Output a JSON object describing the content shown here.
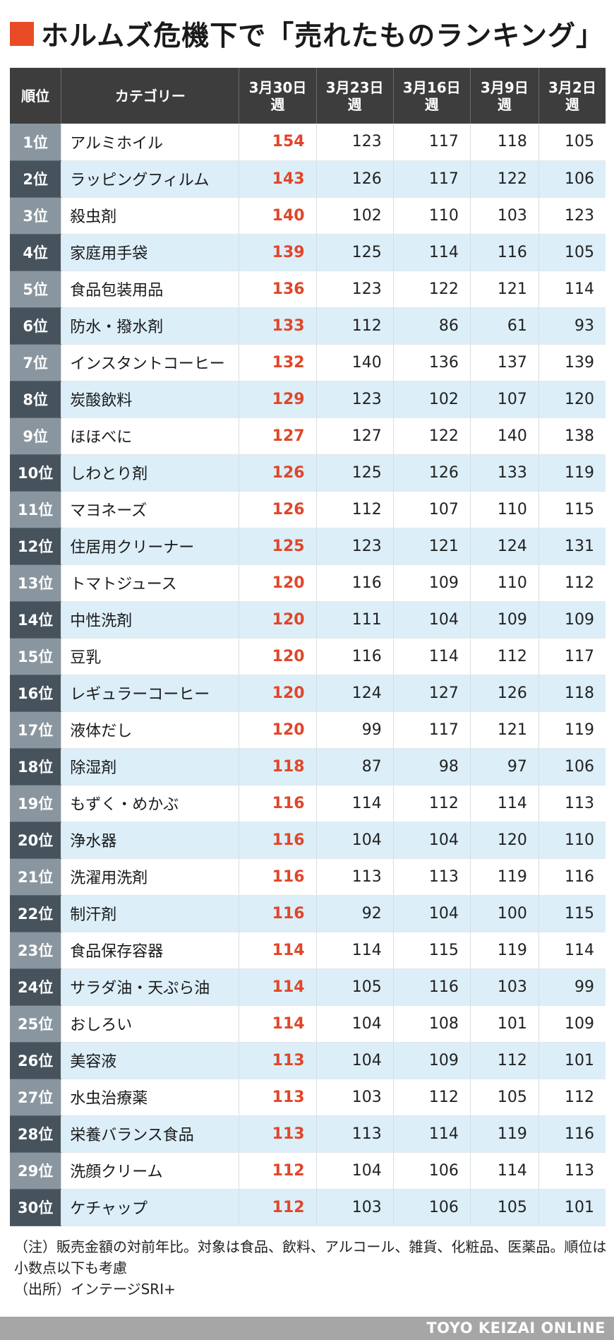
{
  "title": "ホルムズ危機下で「売れたものランキング」",
  "colors": {
    "accent": "#ea4b27",
    "highlight": "#e0462a",
    "header_bg": "#3d3d3d",
    "row_alt": "#dceef8"
  },
  "chart_data": {
    "type": "table",
    "title": "ホルムズ危機下で「売れたものランキング」",
    "columns": [
      "順位",
      "カテゴリー",
      "3月30日週",
      "3月23日週",
      "3月16日週",
      "3月9日週",
      "3月2日週"
    ],
    "rows": [
      {
        "rank": "1位",
        "category": "アルミホイル",
        "values": [
          154,
          123,
          117,
          118,
          105
        ]
      },
      {
        "rank": "2位",
        "category": "ラッピングフィルム",
        "values": [
          143,
          126,
          117,
          122,
          106
        ]
      },
      {
        "rank": "3位",
        "category": "殺虫剤",
        "values": [
          140,
          102,
          110,
          103,
          123
        ]
      },
      {
        "rank": "4位",
        "category": "家庭用手袋",
        "values": [
          139,
          125,
          114,
          116,
          105
        ]
      },
      {
        "rank": "5位",
        "category": "食品包装用品",
        "values": [
          136,
          123,
          122,
          121,
          114
        ]
      },
      {
        "rank": "6位",
        "category": "防水・撥水剤",
        "values": [
          133,
          112,
          86,
          61,
          93
        ]
      },
      {
        "rank": "7位",
        "category": "インスタントコーヒー",
        "values": [
          132,
          140,
          136,
          137,
          139
        ]
      },
      {
        "rank": "8位",
        "category": "炭酸飲料",
        "values": [
          129,
          123,
          102,
          107,
          120
        ]
      },
      {
        "rank": "9位",
        "category": "ほほべに",
        "values": [
          127,
          127,
          122,
          140,
          138
        ]
      },
      {
        "rank": "10位",
        "category": "しわとり剤",
        "values": [
          126,
          125,
          126,
          133,
          119
        ]
      },
      {
        "rank": "11位",
        "category": "マヨネーズ",
        "values": [
          126,
          112,
          107,
          110,
          115
        ]
      },
      {
        "rank": "12位",
        "category": "住居用クリーナー",
        "values": [
          125,
          123,
          121,
          124,
          131
        ]
      },
      {
        "rank": "13位",
        "category": "トマトジュース",
        "values": [
          120,
          116,
          109,
          110,
          112
        ]
      },
      {
        "rank": "14位",
        "category": "中性洗剤",
        "values": [
          120,
          111,
          104,
          109,
          109
        ]
      },
      {
        "rank": "15位",
        "category": "豆乳",
        "values": [
          120,
          116,
          114,
          112,
          117
        ]
      },
      {
        "rank": "16位",
        "category": "レギュラーコーヒー",
        "values": [
          120,
          124,
          127,
          126,
          118
        ]
      },
      {
        "rank": "17位",
        "category": "液体だし",
        "values": [
          120,
          99,
          117,
          121,
          119
        ]
      },
      {
        "rank": "18位",
        "category": "除湿剤",
        "values": [
          118,
          87,
          98,
          97,
          106
        ]
      },
      {
        "rank": "19位",
        "category": "もずく・めかぶ",
        "values": [
          116,
          114,
          112,
          114,
          113
        ]
      },
      {
        "rank": "20位",
        "category": "浄水器",
        "values": [
          116,
          104,
          104,
          120,
          110
        ]
      },
      {
        "rank": "21位",
        "category": "洗濯用洗剤",
        "values": [
          116,
          113,
          113,
          119,
          116
        ]
      },
      {
        "rank": "22位",
        "category": "制汗剤",
        "values": [
          116,
          92,
          104,
          100,
          115
        ]
      },
      {
        "rank": "23位",
        "category": "食品保存容器",
        "values": [
          114,
          114,
          115,
          119,
          114
        ]
      },
      {
        "rank": "24位",
        "category": "サラダ油・天ぷら油",
        "values": [
          114,
          105,
          116,
          103,
          99
        ]
      },
      {
        "rank": "25位",
        "category": "おしろい",
        "values": [
          114,
          104,
          108,
          101,
          109
        ]
      },
      {
        "rank": "26位",
        "category": "美容液",
        "values": [
          113,
          104,
          109,
          112,
          101
        ]
      },
      {
        "rank": "27位",
        "category": "水虫治療薬",
        "values": [
          113,
          103,
          112,
          105,
          112
        ]
      },
      {
        "rank": "28位",
        "category": "栄養バランス食品",
        "values": [
          113,
          113,
          114,
          119,
          116
        ]
      },
      {
        "rank": "29位",
        "category": "洗顔クリーム",
        "values": [
          112,
          104,
          106,
          114,
          113
        ]
      },
      {
        "rank": "30位",
        "category": "ケチャップ",
        "values": [
          112,
          103,
          106,
          105,
          101
        ]
      }
    ]
  },
  "header": {
    "rank": "順位",
    "category": "カテゴリー",
    "weeks": [
      {
        "date": "3月30日",
        "suffix": "週"
      },
      {
        "date": "3月23日",
        "suffix": "週"
      },
      {
        "date": "3月16日",
        "suffix": "週"
      },
      {
        "date": "3月9日",
        "suffix": "週"
      },
      {
        "date": "3月2日",
        "suffix": "週"
      }
    ]
  },
  "notes": {
    "note": "（注）販売金額の対前年比。対象は食品、飲料、アルコール、雑貨、化粧品、医薬品。順位は小数点以下も考慮",
    "source": "（出所）インテージSRI+"
  },
  "footer": {
    "brand": "TOYO KEIZAI ONLINE"
  }
}
